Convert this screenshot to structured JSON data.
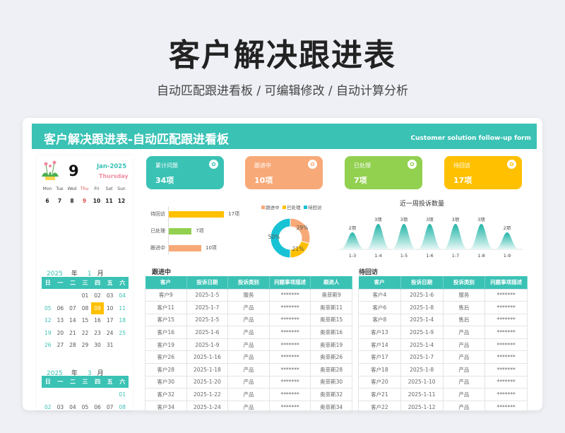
{
  "header": {
    "title": "客户解决跟进表",
    "subtitle": "自动匹配跟进看板 /  可编辑修改  / 自动计算分析"
  },
  "banner": {
    "title": "客户解决跟进表-自动匹配跟进看板",
    "subtitle_en": "Customer solution follow-up form"
  },
  "today": {
    "day": "9",
    "month_year": "Jan-2025",
    "weekday": "Thursday",
    "week_labels": [
      "Mon",
      "Tue",
      "Wed",
      "Thu",
      "Fri",
      "Sat",
      "Sun"
    ],
    "week_dates": [
      "6",
      "7",
      "8",
      "9",
      "10",
      "11",
      "12"
    ]
  },
  "calendars": [
    {
      "year": "2025",
      "year_label": "年",
      "month": "1",
      "month_label": "月",
      "headers": [
        "日",
        "一",
        "二",
        "三",
        "四",
        "五",
        "六"
      ],
      "days": [
        "",
        "",
        "",
        "01",
        "02",
        "03",
        "04",
        "05",
        "06",
        "07",
        "08",
        "09",
        "10",
        "11",
        "12",
        "13",
        "14",
        "15",
        "16",
        "17",
        "18",
        "19",
        "20",
        "21",
        "22",
        "23",
        "24",
        "25",
        "26",
        "27",
        "28",
        "29",
        "30",
        "31"
      ],
      "selected": "09"
    },
    {
      "year": "2025",
      "year_label": "年",
      "month": "3",
      "month_label": "月",
      "headers": [
        "日",
        "一",
        "二",
        "三",
        "四",
        "五",
        "六"
      ],
      "days": [
        "",
        "",
        "",
        "",
        "",
        "",
        "01",
        "02",
        "03",
        "04",
        "05",
        "06",
        "07",
        "08"
      ]
    }
  ],
  "kpis": [
    {
      "label": "累计问题",
      "value": "34项",
      "color": "#3ac2b5"
    },
    {
      "label": "跟进中",
      "value": "10项",
      "color": "#f7a978"
    },
    {
      "label": "已处理",
      "value": "7项",
      "color": "#92d050"
    },
    {
      "label": "待回访",
      "value": "17项",
      "color": "#ffc000"
    }
  ],
  "chart_data": [
    {
      "type": "bar",
      "orientation": "horizontal",
      "categories": [
        "待回访",
        "已处理",
        "跟进中"
      ],
      "values": [
        17,
        7,
        10
      ],
      "data_labels": [
        "17项",
        "7项",
        "10项"
      ],
      "colors": [
        "#ffc000",
        "#92d050",
        "#f7a978"
      ]
    },
    {
      "type": "pie",
      "donut": true,
      "legend": "top",
      "series": [
        {
          "name": "跟进中",
          "value": 10,
          "label": "29%",
          "color": "#f7a978"
        },
        {
          "name": "已处理",
          "value": 7,
          "label": "21%",
          "color": "#ffc000"
        },
        {
          "name": "待回访",
          "value": 17,
          "label": "50%",
          "color": "#17c2d4"
        }
      ]
    },
    {
      "type": "area",
      "title": "近一周投诉数量",
      "categories": [
        "1-3",
        "1-4",
        "1-5",
        "1-6",
        "1-7",
        "1-8",
        "1-9"
      ],
      "values": [
        2,
        3,
        3,
        3,
        3,
        3,
        2
      ],
      "data_labels": [
        "2项",
        "3项",
        "3项",
        "3项",
        "3项",
        "3项",
        "2项"
      ],
      "color": "#3ac2b5"
    }
  ],
  "tables": {
    "following": {
      "title": "跟进中",
      "columns": [
        "客户",
        "投诉日期",
        "投诉类别",
        "问题事项描述",
        "跟进人"
      ],
      "rows": [
        [
          "客户9",
          "2025-1-5",
          "服务",
          "*******",
          "奥菲斯9"
        ],
        [
          "客户11",
          "2025-1-7",
          "产品",
          "*******",
          "奥菲斯11"
        ],
        [
          "客户15",
          "2025-1-5",
          "产品",
          "*******",
          "奥菲斯15"
        ],
        [
          "客户16",
          "2025-1-6",
          "产品",
          "*******",
          "奥菲斯16"
        ],
        [
          "客户19",
          "2025-1-9",
          "产品",
          "*******",
          "奥菲斯19"
        ],
        [
          "客户26",
          "2025-1-16",
          "产品",
          "*******",
          "奥菲斯26"
        ],
        [
          "客户28",
          "2025-1-18",
          "产品",
          "*******",
          "奥菲斯28"
        ],
        [
          "客户30",
          "2025-1-20",
          "产品",
          "*******",
          "奥菲斯30"
        ],
        [
          "客户32",
          "2025-1-22",
          "产品",
          "*******",
          "奥菲斯32"
        ],
        [
          "客户34",
          "2025-1-24",
          "产品",
          "*******",
          "奥菲斯34"
        ]
      ]
    },
    "revisit": {
      "title": "待回访",
      "columns": [
        "客户",
        "投诉日期",
        "投诉类别",
        "问题事项描述"
      ],
      "rows": [
        [
          "客户4",
          "2025-1-6",
          "服务",
          "*******"
        ],
        [
          "客户6",
          "2025-1-8",
          "售后",
          "*******"
        ],
        [
          "客户8",
          "2025-1-4",
          "售后",
          "*******"
        ],
        [
          "客户13",
          "2025-1-9",
          "产品",
          "*******"
        ],
        [
          "客户14",
          "2025-1-4",
          "产品",
          "*******"
        ],
        [
          "客户17",
          "2025-1-7",
          "产品",
          "*******"
        ],
        [
          "客户18",
          "2025-1-8",
          "产品",
          "*******"
        ],
        [
          "客户20",
          "2025-1-10",
          "产品",
          "*******"
        ],
        [
          "客户21",
          "2025-1-11",
          "产品",
          "*******"
        ],
        [
          "客户22",
          "2025-1-12",
          "产品",
          "*******"
        ]
      ]
    }
  }
}
